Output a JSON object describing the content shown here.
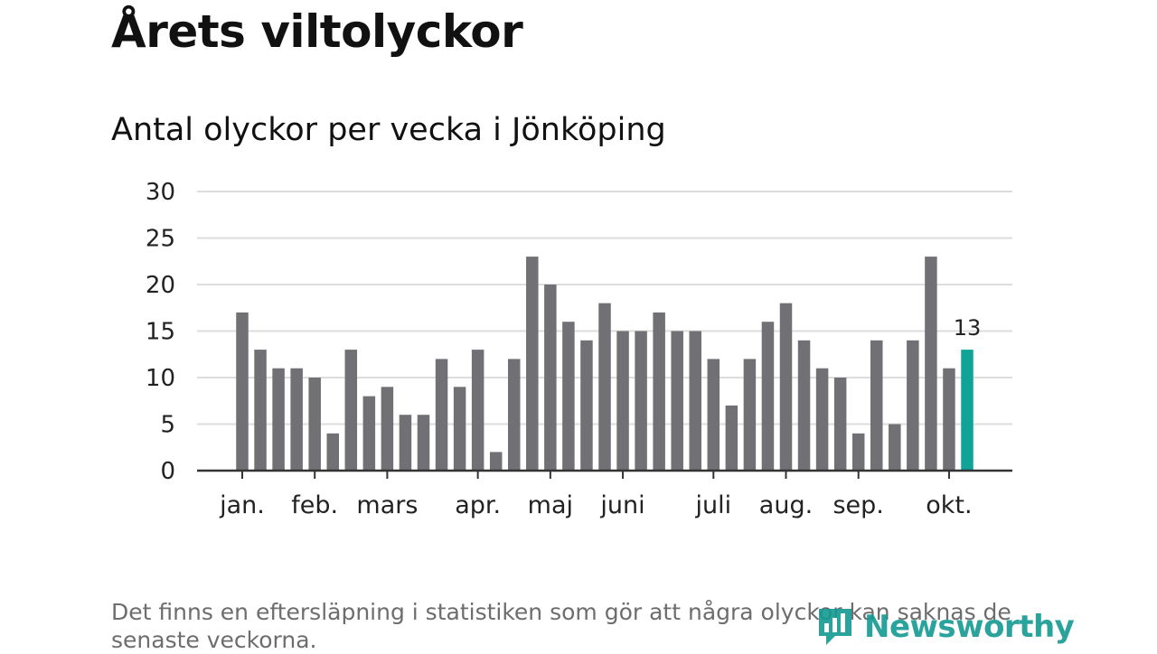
{
  "header": {
    "title": "Årets viltolyckor",
    "subtitle": "Antal olyckor per vecka i Jönköping"
  },
  "chart_data": {
    "type": "bar",
    "title": "Årets viltolyckor",
    "subtitle": "Antal olyckor per vecka i Jönköping",
    "xlabel": "",
    "ylabel": "",
    "ylim": [
      0,
      30
    ],
    "yticks": [
      0,
      5,
      10,
      15,
      20,
      25,
      30
    ],
    "grid": true,
    "legend": "none",
    "values": [
      17,
      13,
      11,
      11,
      10,
      4,
      13,
      8,
      9,
      6,
      6,
      12,
      9,
      13,
      2,
      12,
      23,
      20,
      16,
      14,
      18,
      15,
      15,
      17,
      15,
      15,
      12,
      7,
      12,
      16,
      18,
      14,
      11,
      10,
      4,
      14,
      5,
      14,
      23,
      11,
      13
    ],
    "month_labels": [
      {
        "label": "jan.",
        "week_index": 0
      },
      {
        "label": "feb.",
        "week_index": 4
      },
      {
        "label": "mars",
        "week_index": 8
      },
      {
        "label": "apr.",
        "week_index": 13
      },
      {
        "label": "maj",
        "week_index": 17
      },
      {
        "label": "juni",
        "week_index": 21
      },
      {
        "label": "juli",
        "week_index": 26
      },
      {
        "label": "aug.",
        "week_index": 30
      },
      {
        "label": "sep.",
        "week_index": 34
      },
      {
        "label": "okt.",
        "week_index": 39
      }
    ],
    "highlight": {
      "week_index": 40,
      "label": "13"
    },
    "colors": {
      "bar": "#717075",
      "highlight": "#10a398",
      "grid": "#dddddd",
      "axis": "#333333"
    }
  },
  "footer": {
    "note": "Det finns en eftersläpning i statistiken som gör att några olyckor kan saknas de senaste veckorna.",
    "brand": "Newsworthy",
    "brand_icon": "newsworthy-logo-icon"
  }
}
